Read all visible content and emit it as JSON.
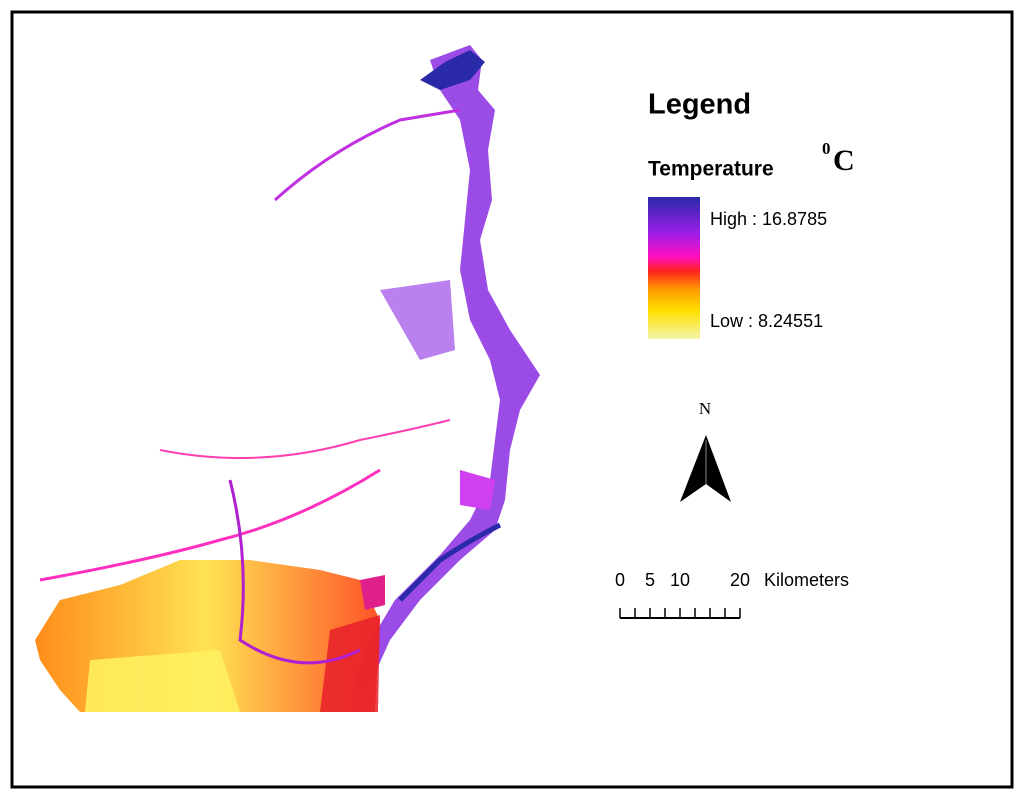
{
  "legend": {
    "title": "Legend",
    "field": "Temperature",
    "unit_sup": "0",
    "unit": "C",
    "high": "High : 16.8785",
    "low": "Low : 8.24551"
  },
  "north_arrow": {
    "label": "N"
  },
  "scale_bar": {
    "ticks": [
      0,
      5,
      10,
      20
    ],
    "unit": "Kilometers"
  }
}
